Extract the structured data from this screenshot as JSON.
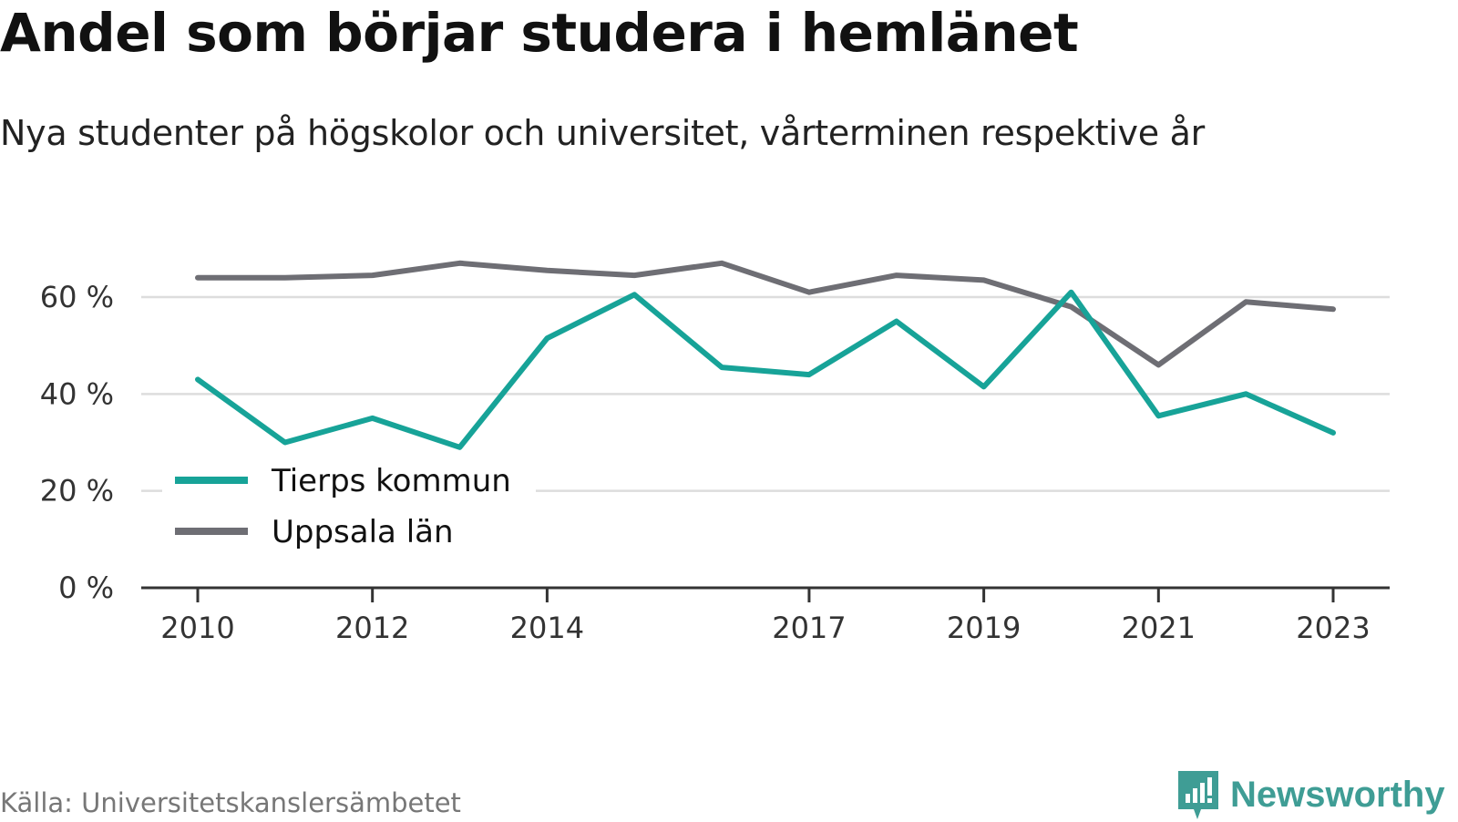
{
  "title": "Andel som börjar studera i hemlänet",
  "subtitle": "Nya studenter på högskolor och universitet, vårterminen respektive år",
  "source": "Källa: Universitetskanslersämbetet",
  "brand": {
    "name": "Newsworthy",
    "icon": "newsworthy-logo-icon",
    "color": "#3f9d95"
  },
  "chart_data": {
    "type": "line",
    "x": [
      2010,
      2011,
      2012,
      2013,
      2014,
      2015,
      2016,
      2017,
      2018,
      2019,
      2020,
      2021,
      2022,
      2023
    ],
    "x_tick_labels": [
      "2010",
      "2012",
      "2014",
      "2017",
      "2019",
      "2021",
      "2023"
    ],
    "x_tick_values": [
      2010,
      2012,
      2014,
      2017,
      2019,
      2021,
      2023
    ],
    "y_ticks": [
      {
        "value": 0,
        "label": "0 %"
      },
      {
        "value": 20,
        "label": "20 %"
      },
      {
        "value": 40,
        "label": "40 %"
      },
      {
        "value": 60,
        "label": "60 %"
      }
    ],
    "ylim": [
      0,
      70
    ],
    "grid": true,
    "legend_position": "lower-left",
    "series": [
      {
        "name": "Tierps kommun",
        "color": "#17a398",
        "values": [
          43,
          30,
          35,
          29,
          51.5,
          60.5,
          45.5,
          44,
          55,
          41.5,
          61,
          35.5,
          40,
          32
        ]
      },
      {
        "name": "Uppsala län",
        "color": "#6e6e74",
        "values": [
          64,
          64,
          64.5,
          67,
          65.5,
          64.5,
          67,
          61,
          64.5,
          63.5,
          58,
          46,
          59,
          57.5
        ]
      }
    ]
  }
}
